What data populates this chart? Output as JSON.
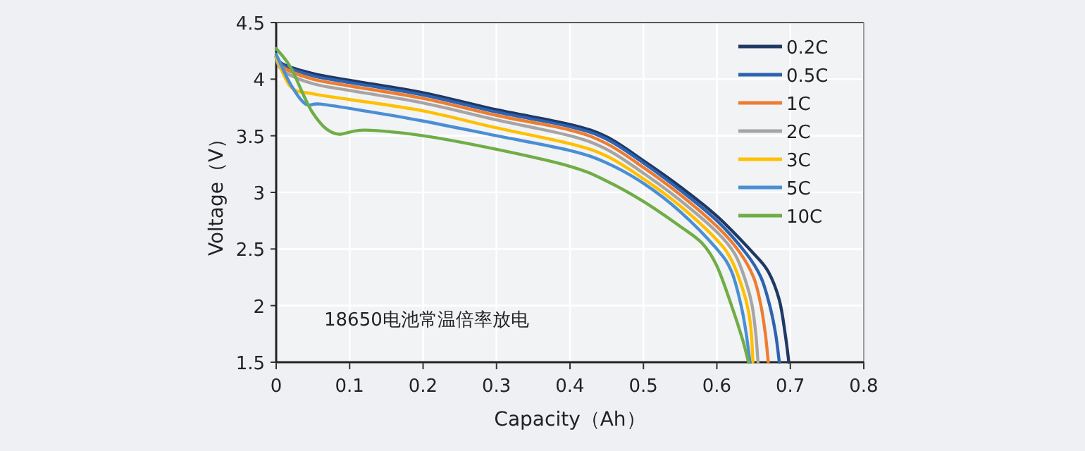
{
  "chart_data": {
    "type": "line",
    "xlabel": "Capacity（Ah）",
    "ylabel": "Voltage（V）",
    "annotations": [
      "18650电池常温倍率放电"
    ],
    "xlim": [
      0,
      0.8
    ],
    "ylim": [
      1.5,
      4.5
    ],
    "xticks": [
      0,
      0.1,
      0.2,
      0.3,
      0.4,
      0.5,
      0.6,
      0.7,
      0.8
    ],
    "yticks": [
      1.5,
      2,
      2.5,
      3,
      3.5,
      4,
      4.5
    ],
    "grid": true,
    "legend": "top right",
    "marker": "none",
    "line_style": "solid",
    "series": [
      {
        "name": "0.2C",
        "color": "#1f3864",
        "x": [
          0,
          0.01,
          0.05,
          0.1,
          0.2,
          0.3,
          0.4,
          0.45,
          0.5,
          0.55,
          0.6,
          0.65,
          0.67,
          0.685,
          0.693,
          0.698
        ],
        "values": [
          4.2,
          4.13,
          4.05,
          3.99,
          3.88,
          3.73,
          3.6,
          3.49,
          3.28,
          3.05,
          2.79,
          2.46,
          2.3,
          2.05,
          1.75,
          1.5
        ]
      },
      {
        "name": "0.5C",
        "color": "#2e63b0",
        "x": [
          0,
          0.01,
          0.05,
          0.1,
          0.2,
          0.3,
          0.4,
          0.45,
          0.5,
          0.55,
          0.6,
          0.64,
          0.66,
          0.672,
          0.68,
          0.685
        ],
        "values": [
          4.2,
          4.12,
          4.03,
          3.97,
          3.86,
          3.71,
          3.58,
          3.47,
          3.26,
          3.02,
          2.75,
          2.46,
          2.25,
          2.0,
          1.75,
          1.5
        ]
      },
      {
        "name": "1C",
        "color": "#ed7d31",
        "x": [
          0,
          0.01,
          0.05,
          0.1,
          0.2,
          0.3,
          0.4,
          0.45,
          0.5,
          0.55,
          0.6,
          0.63,
          0.65,
          0.66,
          0.666,
          0.67
        ],
        "values": [
          4.19,
          4.1,
          4.0,
          3.94,
          3.83,
          3.68,
          3.55,
          3.43,
          3.22,
          2.98,
          2.7,
          2.48,
          2.25,
          2.0,
          1.75,
          1.5
        ]
      },
      {
        "name": "2C",
        "color": "#a5a5a5",
        "x": [
          0,
          0.01,
          0.05,
          0.1,
          0.2,
          0.3,
          0.4,
          0.45,
          0.5,
          0.55,
          0.6,
          0.625,
          0.64,
          0.648,
          0.653,
          0.656
        ],
        "values": [
          4.18,
          4.07,
          3.96,
          3.9,
          3.79,
          3.64,
          3.5,
          3.38,
          3.17,
          2.93,
          2.65,
          2.45,
          2.2,
          2.0,
          1.75,
          1.5
        ]
      },
      {
        "name": "3C",
        "color": "#ffc000",
        "x": [
          0,
          0.02,
          0.05,
          0.1,
          0.2,
          0.3,
          0.4,
          0.45,
          0.5,
          0.55,
          0.6,
          0.62,
          0.635,
          0.643,
          0.647,
          0.649
        ],
        "values": [
          4.2,
          3.93,
          3.87,
          3.82,
          3.72,
          3.57,
          3.43,
          3.32,
          3.12,
          2.88,
          2.58,
          2.4,
          2.15,
          1.95,
          1.75,
          1.5
        ]
      },
      {
        "name": "5C",
        "color": "#4a8fd4",
        "x": [
          0,
          0.02,
          0.04,
          0.06,
          0.12,
          0.2,
          0.3,
          0.4,
          0.45,
          0.5,
          0.55,
          0.6,
          0.62,
          0.633,
          0.64,
          0.645
        ],
        "values": [
          4.22,
          3.95,
          3.78,
          3.78,
          3.72,
          3.63,
          3.5,
          3.37,
          3.26,
          3.08,
          2.83,
          2.5,
          2.3,
          2.0,
          1.75,
          1.5
        ]
      },
      {
        "name": "10C",
        "color": "#70ad47",
        "x": [
          0,
          0.02,
          0.05,
          0.08,
          0.12,
          0.2,
          0.3,
          0.4,
          0.45,
          0.5,
          0.55,
          0.58,
          0.6,
          0.62,
          0.635,
          0.643
        ],
        "values": [
          4.27,
          4.1,
          3.7,
          3.52,
          3.55,
          3.5,
          3.38,
          3.23,
          3.1,
          2.92,
          2.7,
          2.55,
          2.35,
          2.0,
          1.7,
          1.5
        ]
      }
    ]
  }
}
